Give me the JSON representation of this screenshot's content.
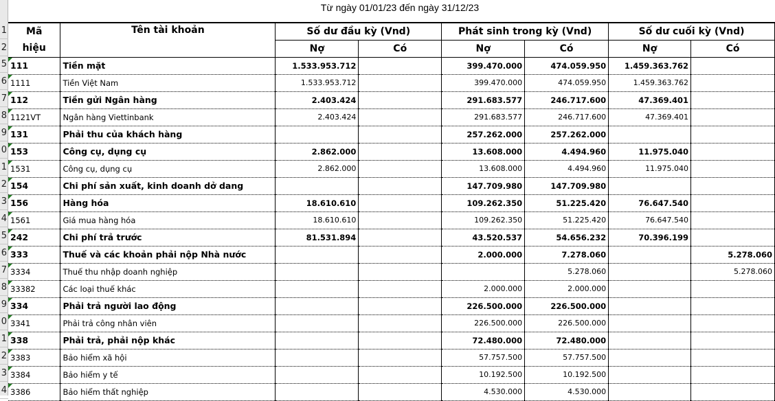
{
  "title": "Từ ngày 01/01/23 đến ngày 31/12/23",
  "row_headers": [
    "1",
    "2",
    "5",
    "6",
    "7",
    "8",
    "9",
    "0",
    "1",
    "2",
    "3",
    "4",
    "5",
    "6",
    "7",
    "8",
    "9",
    "0",
    "1",
    "2",
    "3",
    "4"
  ],
  "header": {
    "code_line1": "Mã",
    "code_line2": "hiệu",
    "name": "Tên tài khoản",
    "opening": "Số dư đầu kỳ (Vnd)",
    "movement": "Phát sinh trong kỳ (Vnd)",
    "closing": "Số dư cuối kỳ (Vnd)",
    "debit": "Nợ",
    "credit": "Có"
  },
  "rows": [
    {
      "code": "111",
      "name": "Tiền mặt",
      "bold": true,
      "v": [
        "1.533.953.712",
        "",
        "399.470.000",
        "474.059.950",
        "1.459.363.762",
        ""
      ]
    },
    {
      "code": "1111",
      "name": "Tiền Việt Nam",
      "bold": false,
      "v": [
        "1.533.953.712",
        "",
        "399.470.000",
        "474.059.950",
        "1.459.363.762",
        ""
      ]
    },
    {
      "code": "112",
      "name": "Tiền gửi Ngân hàng",
      "bold": true,
      "v": [
        "2.403.424",
        "",
        "291.683.577",
        "246.717.600",
        "47.369.401",
        ""
      ]
    },
    {
      "code": "1121VT",
      "name": "Ngân hàng Viettinbank",
      "bold": false,
      "v": [
        "2.403.424",
        "",
        "291.683.577",
        "246.717.600",
        "47.369.401",
        ""
      ]
    },
    {
      "code": "131",
      "name": "Phải thu của khách hàng",
      "bold": true,
      "v": [
        "",
        "",
        "257.262.000",
        "257.262.000",
        "",
        ""
      ]
    },
    {
      "code": "153",
      "name": "Công cụ, dụng cụ",
      "bold": true,
      "v": [
        "2.862.000",
        "",
        "13.608.000",
        "4.494.960",
        "11.975.040",
        ""
      ]
    },
    {
      "code": "1531",
      "name": "Công cụ, dụng cụ",
      "bold": false,
      "v": [
        "2.862.000",
        "",
        "13.608.000",
        "4.494.960",
        "11.975.040",
        ""
      ]
    },
    {
      "code": "154",
      "name": "Chi phí sản xuất, kinh doanh dở dang",
      "bold": true,
      "v": [
        "",
        "",
        "147.709.980",
        "147.709.980",
        "",
        ""
      ]
    },
    {
      "code": "156",
      "name": "Hàng hóa",
      "bold": true,
      "v": [
        "18.610.610",
        "",
        "109.262.350",
        "51.225.420",
        "76.647.540",
        ""
      ]
    },
    {
      "code": "1561",
      "name": "Giá mua hàng hóa",
      "bold": false,
      "v": [
        "18.610.610",
        "",
        "109.262.350",
        "51.225.420",
        "76.647.540",
        ""
      ]
    },
    {
      "code": "242",
      "name": "Chi phí trả trước",
      "bold": true,
      "v": [
        "81.531.894",
        "",
        "43.520.537",
        "54.656.232",
        "70.396.199",
        ""
      ]
    },
    {
      "code": "333",
      "name": "Thuế và các khoản phải nộp Nhà nước",
      "bold": true,
      "v": [
        "",
        "",
        "2.000.000",
        "7.278.060",
        "",
        "5.278.060"
      ]
    },
    {
      "code": "3334",
      "name": "Thuế thu nhập doanh nghiệp",
      "bold": false,
      "v": [
        "",
        "",
        "",
        "5.278.060",
        "",
        "5.278.060"
      ]
    },
    {
      "code": "33382",
      "name": "Các loại thuế khác",
      "bold": false,
      "v": [
        "",
        "",
        "2.000.000",
        "2.000.000",
        "",
        ""
      ]
    },
    {
      "code": "334",
      "name": "Phải trả người lao động",
      "bold": true,
      "v": [
        "",
        "",
        "226.500.000",
        "226.500.000",
        "",
        ""
      ]
    },
    {
      "code": "3341",
      "name": "Phải trả công nhân viên",
      "bold": false,
      "v": [
        "",
        "",
        "226.500.000",
        "226.500.000",
        "",
        ""
      ]
    },
    {
      "code": "338",
      "name": "Phải trả, phải nộp khác",
      "bold": true,
      "v": [
        "",
        "",
        "72.480.000",
        "72.480.000",
        "",
        ""
      ]
    },
    {
      "code": "3383",
      "name": "Bảo hiểm xã hội",
      "bold": false,
      "v": [
        "",
        "",
        "57.757.500",
        "57.757.500",
        "",
        ""
      ]
    },
    {
      "code": "3384",
      "name": "Bảo hiểm y tế",
      "bold": false,
      "v": [
        "",
        "",
        "10.192.500",
        "10.192.500",
        "",
        ""
      ]
    },
    {
      "code": "3386",
      "name": "Bảo hiểm thất nghiệp",
      "bold": false,
      "v": [
        "",
        "",
        "4.530.000",
        "4.530.000",
        "",
        ""
      ]
    }
  ]
}
